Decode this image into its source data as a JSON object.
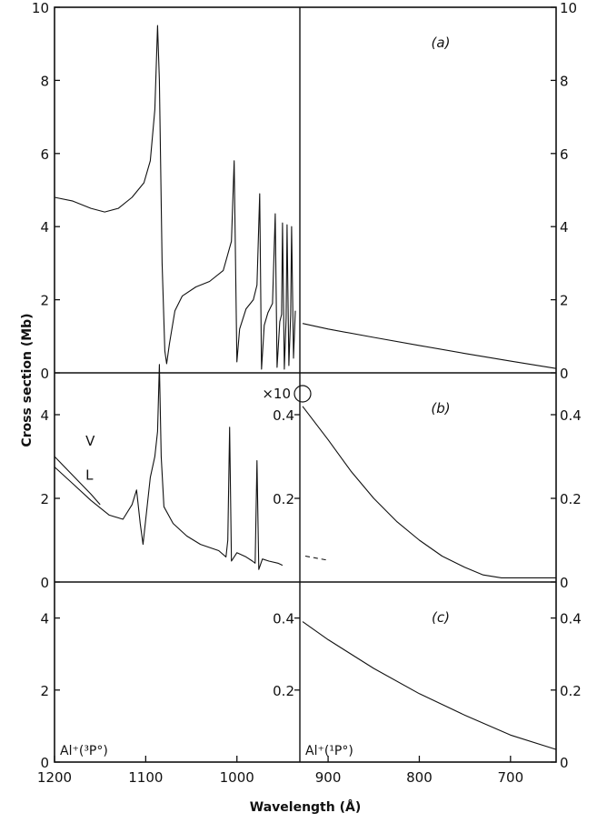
{
  "chart_data": {
    "type": "line",
    "xlabel": "Wavelength (Å)",
    "ylabel": "Cross section (Mb)",
    "x_ticks": [
      1200,
      1100,
      1000,
      900,
      800,
      700
    ],
    "xlim": [
      1200,
      650
    ],
    "threshold_wavelength": 928,
    "ion_labels": [
      "Al⁺(³P°)",
      "Al⁺(¹P°)"
    ],
    "multiplier_label": "×10",
    "panels": [
      {
        "label": "(a)",
        "ylim": [
          0,
          10
        ],
        "left_ticks": [
          0,
          2,
          4,
          6,
          8,
          10
        ],
        "mid_ticks": [],
        "right_ticks": [
          0,
          2,
          4,
          6,
          8,
          10
        ],
        "series": [
          {
            "values": [
              [
                1200,
                4.8
              ],
              [
                1180,
                4.7
              ],
              [
                1160,
                4.5
              ],
              [
                1145,
                4.4
              ],
              [
                1130,
                4.5
              ],
              [
                1115,
                4.8
              ],
              [
                1102,
                5.2
              ],
              [
                1095,
                5.8
              ],
              [
                1090,
                7.2
              ],
              [
                1087,
                9.5
              ],
              [
                1085,
                8.0
              ],
              [
                1082,
                3.0
              ],
              [
                1079,
                0.6
              ],
              [
                1077,
                0.25
              ],
              [
                1074,
                0.8
              ],
              [
                1068,
                1.7
              ],
              [
                1060,
                2.1
              ],
              [
                1045,
                2.35
              ],
              [
                1030,
                2.5
              ],
              [
                1015,
                2.8
              ],
              [
                1006,
                3.6
              ],
              [
                1003,
                5.8
              ],
              [
                1000,
                0.3
              ],
              [
                997,
                1.2
              ],
              [
                990,
                1.75
              ],
              [
                982,
                2.0
              ],
              [
                978,
                2.4
              ],
              [
                975,
                4.9
              ],
              [
                973,
                0.1
              ],
              [
                970,
                1.3
              ],
              [
                966,
                1.65
              ],
              [
                961,
                1.9
              ],
              [
                958,
                4.35
              ],
              [
                956,
                0.15
              ],
              [
                953,
                1.4
              ],
              [
                951,
                1.6
              ],
              [
                950,
                4.1
              ],
              [
                948,
                0.1
              ],
              [
                946,
                1.5
              ],
              [
                945,
                4.05
              ],
              [
                943,
                0.2
              ],
              [
                941,
                1.6
              ],
              [
                940,
                4.0
              ],
              [
                938,
                0.4
              ],
              [
                936,
                1.7
              ]
            ]
          },
          {
            "values": [
              [
                928,
                1.35
              ],
              [
                900,
                1.2
              ],
              [
                850,
                0.97
              ],
              [
                800,
                0.75
              ],
              [
                750,
                0.53
              ],
              [
                700,
                0.32
              ],
              [
                650,
                0.12
              ]
            ]
          }
        ]
      },
      {
        "label": "(b)",
        "ylim": [
          0,
          5
        ],
        "left_ticks": [
          0,
          2,
          4
        ],
        "mid_ticks": [
          0.2,
          0.4
        ],
        "right_ticks": [
          0,
          0.2,
          0.4
        ],
        "mid_scale": 10,
        "series": [
          {
            "name": "V",
            "values": [
              [
                1200,
                3.0
              ],
              [
                1180,
                2.55
              ],
              [
                1160,
                2.1
              ],
              [
                1150,
                1.85
              ]
            ]
          },
          {
            "name": "L",
            "values": [
              [
                1200,
                2.75
              ],
              [
                1180,
                2.35
              ],
              [
                1160,
                1.95
              ],
              [
                1140,
                1.6
              ],
              [
                1125,
                1.5
              ],
              [
                1115,
                1.85
              ],
              [
                1110,
                2.2
              ],
              [
                1106,
                1.4
              ],
              [
                1103,
                0.9
              ],
              [
                1100,
                1.5
              ],
              [
                1095,
                2.5
              ],
              [
                1090,
                3.0
              ],
              [
                1087,
                3.6
              ],
              [
                1085,
                5.2
              ],
              [
                1083,
                3.0
              ],
              [
                1080,
                1.8
              ],
              [
                1070,
                1.4
              ],
              [
                1055,
                1.1
              ],
              [
                1040,
                0.9
              ],
              [
                1020,
                0.75
              ],
              [
                1012,
                0.6
              ],
              [
                1010,
                1.0
              ],
              [
                1008,
                3.7
              ],
              [
                1006,
                0.5
              ],
              [
                1000,
                0.7
              ],
              [
                990,
                0.6
              ],
              [
                983,
                0.5
              ],
              [
                980,
                0.45
              ],
              [
                978,
                2.9
              ],
              [
                976,
                0.3
              ],
              [
                972,
                0.55
              ],
              [
                965,
                0.5
              ],
              [
                955,
                0.45
              ],
              [
                950,
                0.4
              ]
            ]
          },
          {
            "values": [
              [
                928,
                0.42
              ],
              [
                900,
                0.34
              ],
              [
                875,
                0.265
              ],
              [
                850,
                0.2
              ],
              [
                825,
                0.145
              ],
              [
                800,
                0.1
              ],
              [
                775,
                0.062
              ],
              [
                750,
                0.035
              ],
              [
                730,
                0.017
              ],
              [
                710,
                0.01
              ],
              [
                690,
                0.01
              ],
              [
                650,
                0.01
              ]
            ]
          },
          {
            "values": [
              [
                925,
                0.062
              ],
              [
                900,
                0.052
              ]
            ]
          }
        ]
      },
      {
        "label": "(c)",
        "ylim": [
          0,
          5
        ],
        "left_ticks": [
          0,
          2,
          4
        ],
        "mid_ticks": [
          0.2,
          0.4
        ],
        "right_ticks": [
          0,
          0.2,
          0.4
        ],
        "mid_scale": 10,
        "series": [
          {
            "values": [
              [
                928,
                0.39
              ],
              [
                900,
                0.34
              ],
              [
                850,
                0.26
              ],
              [
                800,
                0.19
              ],
              [
                750,
                0.13
              ],
              [
                700,
                0.075
              ],
              [
                650,
                0.035
              ]
            ]
          }
        ]
      }
    ]
  }
}
